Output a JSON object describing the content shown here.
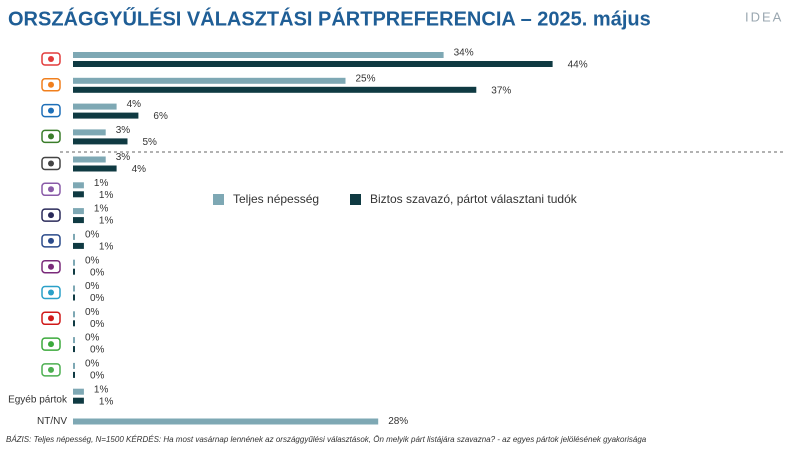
{
  "chart_data": {
    "type": "bar",
    "orientation": "horizontal",
    "title": "ORSZÁGGYŰLÉSI VÁLASZTÁSI PÁRTPREFERENCIA – 2025. május",
    "brand": "IDEA",
    "footnote": "BÁZIS: Teljes népesség, N=1500  KÉRDÉS:  Ha most vasárnap lennének az országgyűlési választások, Ön melyik párt listájára szavazna? - az egyes pártok jelölésének gyakorisága",
    "categories": [
      null,
      null,
      null,
      null,
      null,
      null,
      null,
      null,
      null,
      null,
      null,
      null,
      null,
      "Egyéb pártok",
      "NT/NV"
    ],
    "series": [
      {
        "name": "Teljes népesség",
        "color": "#7ea8b4",
        "values": [
          34,
          25,
          4,
          3,
          3,
          1,
          1,
          0,
          0,
          0,
          0,
          0,
          0,
          1,
          28
        ],
        "value_labels": [
          "34%",
          "25%",
          "4%",
          "3%",
          "3%",
          "1%",
          "1%",
          "0%",
          "0%",
          "0%",
          "0%",
          "0%",
          "0%",
          "1%",
          "28%"
        ]
      },
      {
        "name": "Biztos szavazó, pártot választani tudók",
        "color": "#0f3a42",
        "values": [
          44,
          37,
          6,
          5,
          4,
          1,
          1,
          1,
          0,
          0,
          0,
          0,
          0,
          1,
          null
        ],
        "value_labels": [
          "44%",
          "37%",
          "6%",
          "5%",
          "4%",
          "1%",
          "1%",
          "1%",
          "0%",
          "0%",
          "0%",
          "0%",
          "0%",
          "1%",
          null
        ]
      }
    ]
  }
}
